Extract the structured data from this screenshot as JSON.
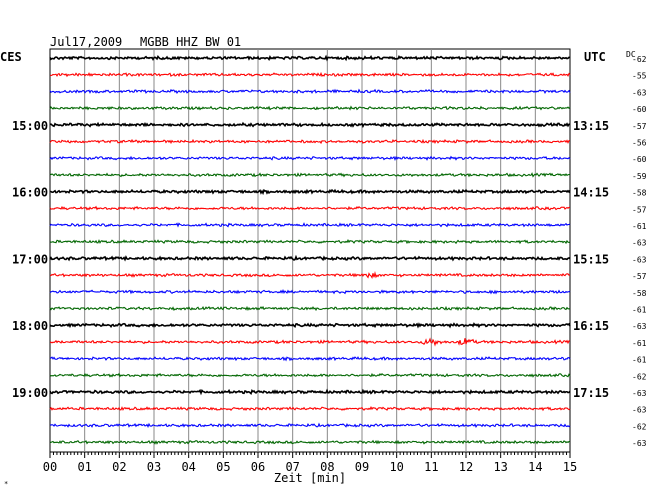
{
  "header": {
    "date": "Jul17,2009",
    "station": "MGBB HHZ BW 01",
    "left_tz": "CES",
    "right_tz": "UTC",
    "dc_label": "DC"
  },
  "left_hours": [
    {
      "label": "15:00",
      "row": 4
    },
    {
      "label": "16:00",
      "row": 8
    },
    {
      "label": "17:00",
      "row": 12
    },
    {
      "label": "18:00",
      "row": 16
    },
    {
      "label": "19:00",
      "row": 20
    }
  ],
  "right_hours": [
    {
      "label": "13:15",
      "row": 4
    },
    {
      "label": "14:15",
      "row": 8
    },
    {
      "label": "15:15",
      "row": 12
    },
    {
      "label": "16:15",
      "row": 16
    },
    {
      "label": "17:15",
      "row": 20
    }
  ],
  "dc_values": [
    "-62",
    "-55",
    "-63",
    "-60",
    "-57",
    "-56",
    "-60",
    "-59",
    "-58",
    "-57",
    "-61",
    "-63",
    "-63",
    "-57",
    "-58",
    "-61",
    "-63",
    "-61",
    "-61",
    "-62",
    "-63",
    "-63",
    "-62",
    "-63"
  ],
  "trace_colors": [
    "#000000",
    "#ff0000",
    "#0000ff",
    "#006600"
  ],
  "minute_ticks": [
    "00",
    "01",
    "02",
    "03",
    "04",
    "05",
    "06",
    "07",
    "08",
    "09",
    "10",
    "11",
    "12",
    "13",
    "14",
    "15"
  ],
  "x_axis_label": "Zeit [min]",
  "events": [
    {
      "row": 17,
      "minute": 11.0,
      "amplitude": 3
    },
    {
      "row": 17,
      "minute": 12.0,
      "amplitude": 3
    },
    {
      "row": 13,
      "minute": 9.2,
      "amplitude": 2
    }
  ]
}
